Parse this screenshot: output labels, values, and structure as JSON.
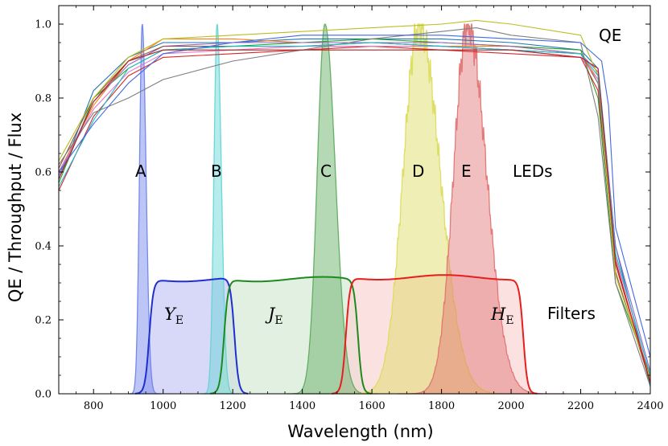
{
  "chart_data": {
    "type": "line",
    "title": "",
    "xlabel": "Wavelength (nm)",
    "ylabel": "QE / Throughput / Flux",
    "xlim": [
      700,
      2400
    ],
    "ylim": [
      0,
      1.05
    ],
    "xticks": [
      "800",
      "1000",
      "1200",
      "1400",
      "1600",
      "1800",
      "2000",
      "2200",
      "2400"
    ],
    "yticks": [
      "0.0",
      "0.2",
      "0.4",
      "0.6",
      "0.8",
      "1.0"
    ],
    "grid": false,
    "qe_curves": [
      {
        "color": "#1f77b4",
        "points": [
          [
            700,
            0.58
          ],
          [
            800,
            0.82
          ],
          [
            900,
            0.91
          ],
          [
            1000,
            0.95
          ],
          [
            1200,
            0.95
          ],
          [
            1400,
            0.96
          ],
          [
            1600,
            0.96
          ],
          [
            1800,
            0.96
          ],
          [
            2000,
            0.95
          ],
          [
            2200,
            0.93
          ],
          [
            2250,
            0.88
          ],
          [
            2300,
            0.4
          ],
          [
            2400,
            0.02
          ]
        ]
      },
      {
        "color": "#ff7f0e",
        "points": [
          [
            700,
            0.6
          ],
          [
            800,
            0.78
          ],
          [
            900,
            0.9
          ],
          [
            1000,
            0.96
          ],
          [
            1200,
            0.96
          ],
          [
            1400,
            0.95
          ],
          [
            1600,
            0.95
          ],
          [
            1800,
            0.94
          ],
          [
            2000,
            0.94
          ],
          [
            2200,
            0.92
          ],
          [
            2250,
            0.85
          ],
          [
            2300,
            0.35
          ],
          [
            2400,
            0.03
          ]
        ]
      },
      {
        "color": "#2ca02c",
        "points": [
          [
            700,
            0.57
          ],
          [
            800,
            0.8
          ],
          [
            900,
            0.88
          ],
          [
            1000,
            0.93
          ],
          [
            1200,
            0.94
          ],
          [
            1400,
            0.95
          ],
          [
            1600,
            0.96
          ],
          [
            1800,
            0.95
          ],
          [
            2000,
            0.94
          ],
          [
            2200,
            0.93
          ],
          [
            2250,
            0.8
          ],
          [
            2300,
            0.3
          ],
          [
            2400,
            0.05
          ]
        ]
      },
      {
        "color": "#d62728",
        "points": [
          [
            700,
            0.55
          ],
          [
            800,
            0.75
          ],
          [
            900,
            0.86
          ],
          [
            1000,
            0.91
          ],
          [
            1200,
            0.92
          ],
          [
            1400,
            0.93
          ],
          [
            1600,
            0.94
          ],
          [
            1800,
            0.93
          ],
          [
            2000,
            0.92
          ],
          [
            2200,
            0.91
          ],
          [
            2250,
            0.82
          ],
          [
            2300,
            0.35
          ],
          [
            2400,
            0.04
          ]
        ]
      },
      {
        "color": "#9467bd",
        "points": [
          [
            700,
            0.59
          ],
          [
            800,
            0.79
          ],
          [
            900,
            0.89
          ],
          [
            1000,
            0.94
          ],
          [
            1200,
            0.95
          ],
          [
            1400,
            0.95
          ],
          [
            1600,
            0.95
          ],
          [
            1800,
            0.95
          ],
          [
            2000,
            0.94
          ],
          [
            2200,
            0.92
          ],
          [
            2250,
            0.87
          ],
          [
            2300,
            0.4
          ],
          [
            2400,
            0.06
          ]
        ]
      },
      {
        "color": "#8c564b",
        "points": [
          [
            700,
            0.61
          ],
          [
            800,
            0.8
          ],
          [
            900,
            0.9
          ],
          [
            1000,
            0.94
          ],
          [
            1200,
            0.94
          ],
          [
            1400,
            0.94
          ],
          [
            1600,
            0.95
          ],
          [
            1800,
            0.94
          ],
          [
            2000,
            0.93
          ],
          [
            2200,
            0.92
          ],
          [
            2250,
            0.84
          ],
          [
            2300,
            0.33
          ],
          [
            2400,
            0.03
          ]
        ]
      },
      {
        "color": "#e377c2",
        "points": [
          [
            700,
            0.6
          ],
          [
            800,
            0.77
          ],
          [
            900,
            0.87
          ],
          [
            1000,
            0.92
          ],
          [
            1200,
            0.93
          ],
          [
            1400,
            0.94
          ],
          [
            1600,
            0.94
          ],
          [
            1800,
            0.94
          ],
          [
            2000,
            0.93
          ],
          [
            2200,
            0.91
          ],
          [
            2250,
            0.85
          ],
          [
            2300,
            0.37
          ],
          [
            2400,
            0.05
          ]
        ]
      },
      {
        "color": "#7f7f7f",
        "points": [
          [
            700,
            0.62
          ],
          [
            800,
            0.76
          ],
          [
            900,
            0.8
          ],
          [
            1000,
            0.85
          ],
          [
            1200,
            0.9
          ],
          [
            1400,
            0.93
          ],
          [
            1600,
            0.96
          ],
          [
            1800,
            0.98
          ],
          [
            1900,
            0.99
          ],
          [
            2000,
            0.97
          ],
          [
            2200,
            0.95
          ],
          [
            2250,
            0.75
          ],
          [
            2300,
            0.3
          ],
          [
            2400,
            0.02
          ]
        ]
      },
      {
        "color": "#bcbd22",
        "points": [
          [
            700,
            0.63
          ],
          [
            800,
            0.8
          ],
          [
            900,
            0.91
          ],
          [
            1000,
            0.96
          ],
          [
            1200,
            0.97
          ],
          [
            1400,
            0.98
          ],
          [
            1600,
            0.99
          ],
          [
            1800,
            1.0
          ],
          [
            1900,
            1.01
          ],
          [
            2000,
            1.0
          ],
          [
            2200,
            0.97
          ],
          [
            2250,
            0.86
          ],
          [
            2300,
            0.32
          ],
          [
            2400,
            0.04
          ]
        ]
      },
      {
        "color": "#17becf",
        "points": [
          [
            700,
            0.56
          ],
          [
            800,
            0.74
          ],
          [
            900,
            0.88
          ],
          [
            1000,
            0.93
          ],
          [
            1200,
            0.94
          ],
          [
            1400,
            0.94
          ],
          [
            1600,
            0.95
          ],
          [
            1800,
            0.94
          ],
          [
            2000,
            0.93
          ],
          [
            2200,
            0.92
          ],
          [
            2250,
            0.86
          ],
          [
            2300,
            0.38
          ],
          [
            2400,
            0.05
          ]
        ]
      },
      {
        "color": "#4169e1",
        "points": [
          [
            700,
            0.6
          ],
          [
            800,
            0.73
          ],
          [
            900,
            0.84
          ],
          [
            1000,
            0.92
          ],
          [
            1200,
            0.95
          ],
          [
            1400,
            0.97
          ],
          [
            1600,
            0.97
          ],
          [
            1800,
            0.97
          ],
          [
            2000,
            0.96
          ],
          [
            2200,
            0.95
          ],
          [
            2260,
            0.9
          ],
          [
            2280,
            0.78
          ],
          [
            2300,
            0.45
          ],
          [
            2400,
            0.1
          ]
        ]
      },
      {
        "color": "#b22222",
        "points": [
          [
            700,
            0.58
          ],
          [
            800,
            0.79
          ],
          [
            900,
            0.9
          ],
          [
            1000,
            0.93
          ],
          [
            1200,
            0.93
          ],
          [
            1400,
            0.93
          ],
          [
            1600,
            0.93
          ],
          [
            1800,
            0.93
          ],
          [
            2000,
            0.93
          ],
          [
            2200,
            0.91
          ],
          [
            2250,
            0.88
          ],
          [
            2300,
            0.36
          ],
          [
            2400,
            0.03
          ]
        ]
      }
    ],
    "leds": [
      {
        "label": "A",
        "center": 940,
        "sigma": 8,
        "color": "#6a7fe8"
      },
      {
        "label": "B",
        "center": 1155,
        "sigma": 9,
        "color": "#5fd4d4"
      },
      {
        "label": "C",
        "center": 1465,
        "sigma": 22,
        "color": "#5aa85a"
      },
      {
        "label": "D",
        "center": 1735,
        "sigma": 45,
        "color": "#dcdc5a"
      },
      {
        "label": "E",
        "center": 1875,
        "sigma": 40,
        "color": "#e07070"
      }
    ],
    "filters": [
      {
        "label": "Y",
        "sub": "E",
        "lo": 960,
        "hi": 1205,
        "peak": 0.31,
        "color": "#1f2fd0",
        "fill": "#c8c8f5"
      },
      {
        "label": "J",
        "sub": "E",
        "lo": 1175,
        "hi": 1560,
        "peak": 0.31,
        "color": "#1e8a1e",
        "fill": "#d6ead6"
      },
      {
        "label": "H",
        "sub": "E",
        "lo": 1525,
        "hi": 2035,
        "peak": 0.315,
        "color": "#e61e1e",
        "fill": "#fbd4d4"
      }
    ],
    "annotations": {
      "qe": "QE",
      "leds": "LEDs",
      "filters": "Filters",
      "Y": "Y",
      "J": "J",
      "H": "H",
      "sub": "E",
      "A": "A",
      "B": "B",
      "C": "C",
      "D": "D",
      "E": "E"
    }
  }
}
